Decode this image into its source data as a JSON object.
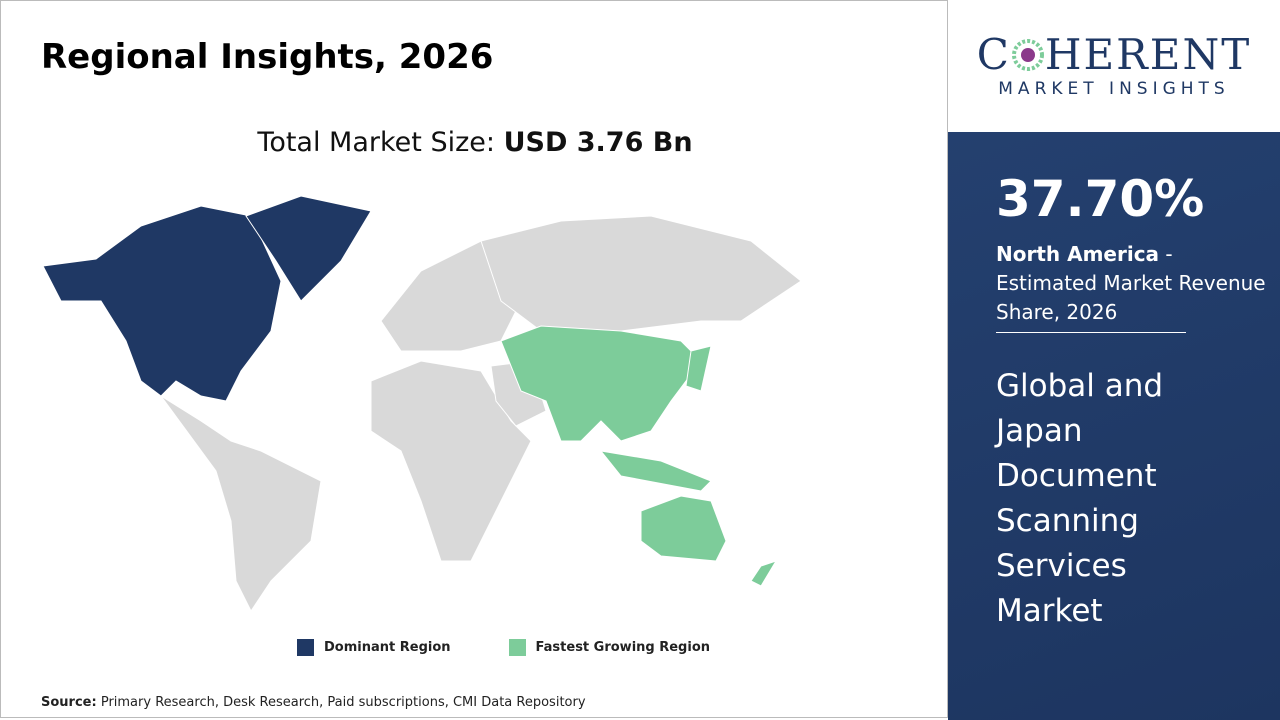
{
  "header": {
    "title": "Regional Insights, 2026"
  },
  "market_size": {
    "label": "Total Market Size:",
    "value": "USD 3.76 Bn"
  },
  "legend": [
    {
      "label": "Dominant Region",
      "color": "#1f3864"
    },
    {
      "label": "Fastest Growing Region",
      "color": "#7dcc9a"
    }
  ],
  "source": {
    "label": "Source:",
    "text": "Primary Research, Desk Research, Paid subscriptions, CMI Data Repository"
  },
  "logo": {
    "first": "C",
    "rest": "HERENT",
    "tagline": "MARKET INSIGHTS"
  },
  "sidebar": {
    "share": "37.70%",
    "region": "North America",
    "description": "- Estimated Market Revenue Share, 2026",
    "market": "Global and Japan Document Scanning Services Market"
  }
}
